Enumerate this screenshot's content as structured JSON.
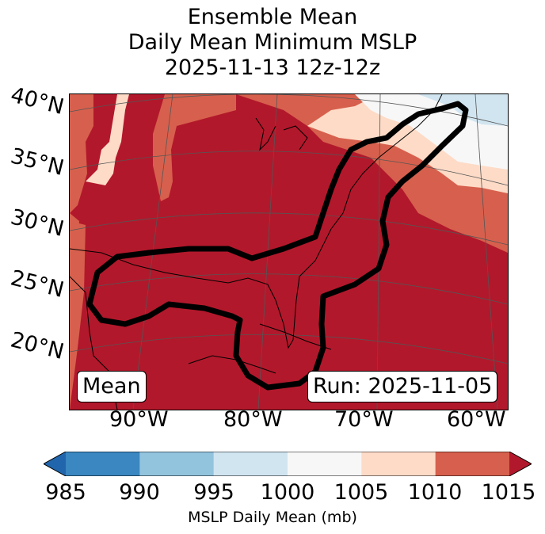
{
  "title": {
    "line1": "Ensemble Mean",
    "line2": "Daily Mean Minimum MSLP",
    "line3": "2025-11-13 12z-12z"
  },
  "lat_labels": [
    "40°N",
    "35°N",
    "30°N",
    "25°N",
    "20°N"
  ],
  "lon_labels": [
    "90°W",
    "80°W",
    "70°W",
    "60°W"
  ],
  "map": {
    "inset_left": "Mean",
    "inset_right": "Run: 2025-11-05"
  },
  "colorbar": {
    "ticks": [
      "985",
      "990",
      "995",
      "1000",
      "1005",
      "1010",
      "1015"
    ],
    "colors": [
      "#3a87c1",
      "#92c4de",
      "#d1e5f0",
      "#f7f7f7",
      "#fddbc7",
      "#d6604d",
      "#b2182b"
    ],
    "under_color": "#2166ac",
    "over_color": "#b2182b",
    "label": "MSLP Daily Mean (mb)"
  },
  "colors": {
    "land_contour": "#000000",
    "gridline": "#555555"
  }
}
